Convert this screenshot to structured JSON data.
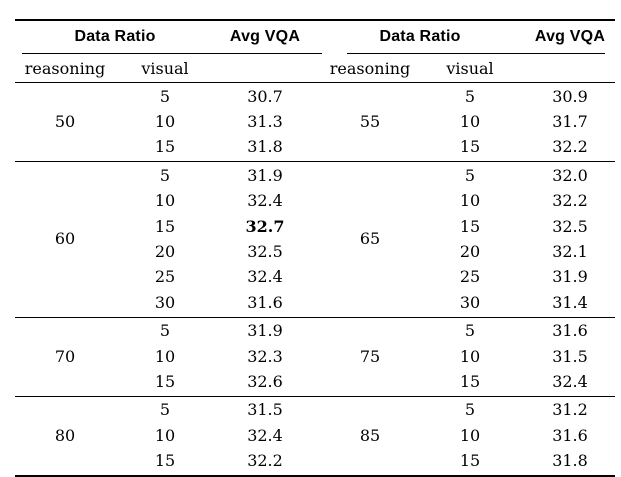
{
  "colors": {
    "background": "#ffffff",
    "text": "#000000",
    "rule": "#000000"
  },
  "table": {
    "panels": [
      {
        "group_header": "Data Ratio",
        "metric_header": "Avg VQA",
        "subheaders": {
          "reasoning": "reasoning",
          "visual": "visual"
        },
        "sections": [
          {
            "reasoning": "50",
            "rows": [
              {
                "visual": "5",
                "avg_vqa": "30.7",
                "bold": false
              },
              {
                "visual": "10",
                "avg_vqa": "31.3",
                "bold": false
              },
              {
                "visual": "15",
                "avg_vqa": "31.8",
                "bold": false
              }
            ]
          },
          {
            "reasoning": "60",
            "rows": [
              {
                "visual": "5",
                "avg_vqa": "31.9",
                "bold": false
              },
              {
                "visual": "10",
                "avg_vqa": "32.4",
                "bold": false
              },
              {
                "visual": "15",
                "avg_vqa": "32.7",
                "bold": true
              },
              {
                "visual": "20",
                "avg_vqa": "32.5",
                "bold": false
              },
              {
                "visual": "25",
                "avg_vqa": "32.4",
                "bold": false
              },
              {
                "visual": "30",
                "avg_vqa": "31.6",
                "bold": false
              }
            ]
          },
          {
            "reasoning": "70",
            "rows": [
              {
                "visual": "5",
                "avg_vqa": "31.9",
                "bold": false
              },
              {
                "visual": "10",
                "avg_vqa": "32.3",
                "bold": false
              },
              {
                "visual": "15",
                "avg_vqa": "32.6",
                "bold": false
              }
            ]
          },
          {
            "reasoning": "80",
            "rows": [
              {
                "visual": "5",
                "avg_vqa": "31.5",
                "bold": false
              },
              {
                "visual": "10",
                "avg_vqa": "32.4",
                "bold": false
              },
              {
                "visual": "15",
                "avg_vqa": "32.2",
                "bold": false
              }
            ]
          }
        ]
      },
      {
        "group_header": "Data Ratio",
        "metric_header": "Avg VQA",
        "subheaders": {
          "reasoning": "reasoning",
          "visual": "visual"
        },
        "sections": [
          {
            "reasoning": "55",
            "rows": [
              {
                "visual": "5",
                "avg_vqa": "30.9",
                "bold": false
              },
              {
                "visual": "10",
                "avg_vqa": "31.7",
                "bold": false
              },
              {
                "visual": "15",
                "avg_vqa": "32.2",
                "bold": false
              }
            ]
          },
          {
            "reasoning": "65",
            "rows": [
              {
                "visual": "5",
                "avg_vqa": "32.0",
                "bold": false
              },
              {
                "visual": "10",
                "avg_vqa": "32.2",
                "bold": false
              },
              {
                "visual": "15",
                "avg_vqa": "32.5",
                "bold": false
              },
              {
                "visual": "20",
                "avg_vqa": "32.1",
                "bold": false
              },
              {
                "visual": "25",
                "avg_vqa": "31.9",
                "bold": false
              },
              {
                "visual": "30",
                "avg_vqa": "31.4",
                "bold": false
              }
            ]
          },
          {
            "reasoning": "75",
            "rows": [
              {
                "visual": "5",
                "avg_vqa": "31.6",
                "bold": false
              },
              {
                "visual": "10",
                "avg_vqa": "31.5",
                "bold": false
              },
              {
                "visual": "15",
                "avg_vqa": "32.4",
                "bold": false
              }
            ]
          },
          {
            "reasoning": "85",
            "rows": [
              {
                "visual": "5",
                "avg_vqa": "31.2",
                "bold": false
              },
              {
                "visual": "10",
                "avg_vqa": "31.6",
                "bold": false
              },
              {
                "visual": "15",
                "avg_vqa": "31.8",
                "bold": false
              }
            ]
          }
        ]
      }
    ]
  }
}
